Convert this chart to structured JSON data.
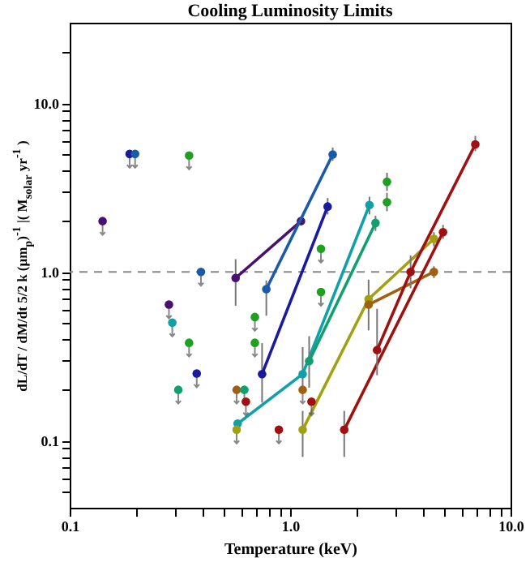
{
  "chart_data": {
    "type": "line",
    "title": "Cooling Luminosity Limits",
    "xlabel": "Temperature (keV)",
    "ylabel": "dL/dT / dM/dt  5/2 k (μm$_{p}$)$^{-1}$ |( M$_{solar}$ yr$^{-1}$ )",
    "log": "xy",
    "marker": "circle",
    "xlim": [
      0.1,
      10
    ],
    "ylim": [
      0.04,
      30
    ],
    "xticks": [
      {
        "value": 0.1,
        "label": "0.1"
      },
      {
        "value": 0.2,
        "label": null
      },
      {
        "value": 0.3,
        "label": null
      },
      {
        "value": 0.4,
        "label": null
      },
      {
        "value": 0.5,
        "label": null
      },
      {
        "value": 0.6,
        "label": null
      },
      {
        "value": 0.7,
        "label": null
      },
      {
        "value": 0.8,
        "label": null
      },
      {
        "value": 0.9,
        "label": null
      },
      {
        "value": 1,
        "label": "1.0"
      },
      {
        "value": 2,
        "label": null
      },
      {
        "value": 3,
        "label": null
      },
      {
        "value": 4,
        "label": null
      },
      {
        "value": 5,
        "label": null
      },
      {
        "value": 6,
        "label": null
      },
      {
        "value": 7,
        "label": null
      },
      {
        "value": 8,
        "label": null
      },
      {
        "value": 9,
        "label": null
      },
      {
        "value": 10,
        "label": "10.0"
      }
    ],
    "yticks": [
      {
        "value": 0.05,
        "label": null
      },
      {
        "value": 0.06,
        "label": null
      },
      {
        "value": 0.07,
        "label": null
      },
      {
        "value": 0.08,
        "label": null
      },
      {
        "value": 0.09,
        "label": null
      },
      {
        "value": 0.1,
        "label": "0.1"
      },
      {
        "value": 0.2,
        "label": null
      },
      {
        "value": 0.3,
        "label": null
      },
      {
        "value": 0.4,
        "label": null
      },
      {
        "value": 0.5,
        "label": null
      },
      {
        "value": 0.6,
        "label": null
      },
      {
        "value": 0.7,
        "label": null
      },
      {
        "value": 0.8,
        "label": null
      },
      {
        "value": 0.9,
        "label": null
      },
      {
        "value": 1,
        "label": "1.0"
      },
      {
        "value": 2,
        "label": null
      },
      {
        "value": 3,
        "label": null
      },
      {
        "value": 4,
        "label": null
      },
      {
        "value": 5,
        "label": null
      },
      {
        "value": 6,
        "label": null
      },
      {
        "value": 7,
        "label": null
      },
      {
        "value": 8,
        "label": null
      },
      {
        "value": 9,
        "label": null
      },
      {
        "value": 10,
        "label": "10.0"
      },
      {
        "value": 20,
        "label": null
      }
    ],
    "ref_lines": [
      {
        "axis": "y",
        "value": 1,
        "color": "#888888",
        "line_style": "dashed"
      }
    ],
    "series": [
      {
        "color": "#4a1070",
        "x": [
          0.566,
          1.12
        ],
        "values": [
          0.92,
          2.0
        ],
        "errors": [
          [
            0.63,
            1.19
          ],
          null
        ]
      },
      {
        "color": "#1a5aaa",
        "x": [
          0.78,
          1.56
        ],
        "values": [
          0.79,
          4.96
        ],
        "errors": [
          [
            0.55,
            0.89
          ],
          [
            4.56,
            5.46
          ]
        ]
      },
      {
        "color": "#1a1aa0",
        "x": [
          0.746,
          1.48
        ],
        "values": [
          0.248,
          2.44
        ],
        "errors": [
          [
            0.168,
            0.378
          ],
          [
            2.19,
            2.74
          ]
        ]
      },
      {
        "color": "#10a0a8",
        "x": [
          0.578,
          1.14,
          2.29
        ],
        "values": [
          0.126,
          0.248,
          2.49
        ],
        "errors": [
          null,
          [
            0.198,
            0.358
          ],
          [
            2.19,
            2.79
          ]
        ]
      },
      {
        "color": "#10a070",
        "x": [
          1.22,
          2.44
        ],
        "values": [
          0.296,
          1.95
        ],
        "errors": [
          [
            0.206,
            0.416
          ],
          [
            1.75,
            2.15
          ]
        ]
      },
      {
        "color": "#a0a010",
        "x": [
          1.14,
          2.27,
          4.49
        ],
        "values": [
          0.116,
          0.69,
          1.57
        ],
        "errors": [
          [
            0.08,
            0.15
          ],
          [
            0.45,
            0.9
          ],
          [
            1.42,
            1.72
          ]
        ]
      },
      {
        "color": "#a06010",
        "x": [
          2.27,
          4.49
        ],
        "values": [
          0.64,
          1.0
        ],
        "errors": [
          null,
          [
            0.92,
            1.08
          ]
        ]
      },
      {
        "color": "#a01010",
        "x": [
          1.76,
          4.94
        ],
        "values": [
          0.116,
          1.72
        ],
        "errors": [
          [
            0.08,
            0.15
          ],
          [
            1.57,
            1.9
          ]
        ]
      },
      {
        "color": "#a01010",
        "x": [
          2.48,
          3.52,
          6.92
        ],
        "values": [
          0.344,
          1.0,
          5.7
        ],
        "errors": [
          [
            0.244,
            0.604
          ],
          [
            0.8,
            1.25
          ],
          [
            5.2,
            6.4
          ]
        ]
      },
      {
        "type": "scatter",
        "color": "#20a020",
        "x": [
          2.75,
          2.75
        ],
        "values": [
          3.42,
          2.59
        ],
        "errors": [
          [
            3.02,
            3.87
          ],
          [
            2.29,
            2.94
          ]
        ]
      },
      {
        "type": "scatter",
        "x": [
          0.141,
          0.187,
          0.198,
          0.348,
          0.394,
          0.282,
          0.292,
          0.348,
          0.377,
          0.311,
          0.692,
          0.692,
          0.572,
          0.62,
          0.63,
          0.572,
          0.889,
          1.14,
          1.25,
          1.38,
          1.38
        ],
        "values": [
          2.0,
          5.0,
          5.0,
          4.9,
          1.0,
          0.64,
          0.5,
          0.38,
          0.25,
          0.2,
          0.54,
          0.38,
          0.2,
          0.2,
          0.17,
          0.116,
          0.116,
          0.2,
          0.17,
          1.37,
          0.76
        ],
        "colors": [
          "#4a1070",
          "#1a1aa0",
          "#1a5aaa",
          "#20a020",
          "#1a5aaa",
          "#4a1070",
          "#10a0a8",
          "#20a020",
          "#1a1aa0",
          "#10a070",
          "#20a020",
          "#20a020",
          "#a06010",
          "#10a070",
          "#a01010",
          "#a0a010",
          "#a01010",
          "#a06010",
          "#a01010",
          "#20a020",
          "#20a020"
        ]
      }
    ]
  }
}
